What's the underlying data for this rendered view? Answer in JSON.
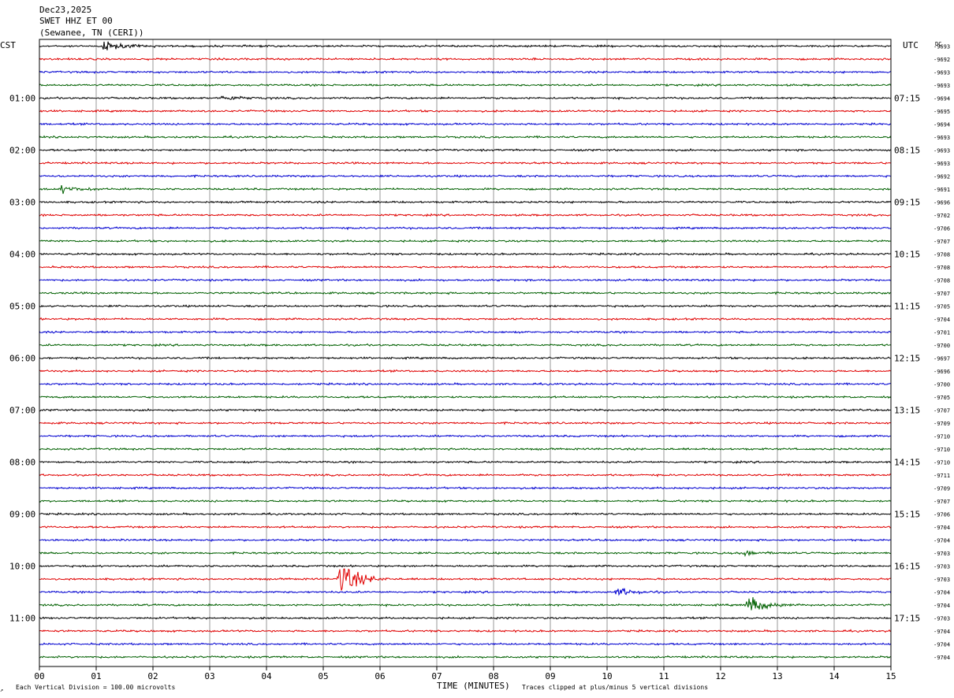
{
  "header": {
    "date": "Dec23,2025",
    "station": "SWET HHZ ET 00",
    "location": "(Sewanee, TN (CERI))"
  },
  "left_timezone": "CST",
  "right_timezone": "UTC",
  "dc_label": "DC",
  "footer": {
    "scale_note": "Each Vertical Division =  100.00 microvolts",
    "clip_note": "Traces clipped at plus/minus 5 vertical divisions",
    "corner_mark": "↗"
  },
  "chart_data": {
    "type": "line",
    "xlabel": "TIME (MINUTES)",
    "xlim": [
      0,
      15
    ],
    "x_ticks": [
      "00",
      "01",
      "02",
      "03",
      "04",
      "05",
      "06",
      "07",
      "08",
      "09",
      "10",
      "11",
      "12",
      "13",
      "14",
      "15"
    ],
    "trace_colors": [
      "#000000",
      "#e00000",
      "#0000d0",
      "#006000"
    ],
    "left_hour_labels": [
      "01:00",
      "02:00",
      "03:00",
      "04:00",
      "05:00",
      "06:00",
      "07:00",
      "08:00",
      "09:00",
      "10:00",
      "11:00"
    ],
    "right_hour_labels": [
      "07:15",
      "08:15",
      "09:15",
      "10:15",
      "11:15",
      "12:15",
      "13:15",
      "14:15",
      "15:15",
      "16:15",
      "17:15"
    ],
    "dc_offsets": [
      "-9693",
      "-9692",
      "-9693",
      "-9693",
      "-9694",
      "-9695",
      "-9694",
      "-9693",
      "-9693",
      "-9693",
      "-9692",
      "-9691",
      "-9696",
      "-9702",
      "-9706",
      "-9707",
      "-9708",
      "-9708",
      "-9708",
      "-9707",
      "-9705",
      "-9704",
      "-9701",
      "-9700",
      "-9697",
      "-9696",
      "-9700",
      "-9705",
      "-9707",
      "-9709",
      "-9710",
      "-9710",
      "-9710",
      "-9711",
      "-9709",
      "-9707",
      "-9706",
      "-9704",
      "-9704",
      "-9703",
      "-9703",
      "-9703",
      "-9704",
      "-9704",
      "-9703",
      "-9704",
      "-9704",
      "-9704"
    ],
    "events": [
      {
        "trace": 0,
        "minute": 1.15,
        "amplitude": 0.7
      },
      {
        "trace": 4,
        "minute": 3.25,
        "amplitude": 0.4
      },
      {
        "trace": 11,
        "minute": 0.4,
        "amplitude": 0.5
      },
      {
        "trace": 41,
        "minute": 5.3,
        "amplitude": 3.0
      },
      {
        "trace": 42,
        "minute": 10.2,
        "amplitude": 0.6
      },
      {
        "trace": 43,
        "minute": 12.5,
        "amplitude": 1.4
      },
      {
        "trace": 39,
        "minute": 12.4,
        "amplitude": 0.4
      }
    ]
  }
}
